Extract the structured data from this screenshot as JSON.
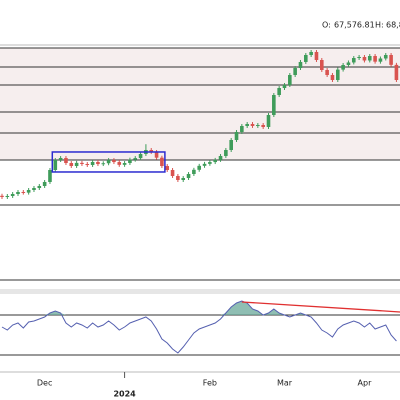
{
  "header": {
    "open_label": "O:",
    "open": "67,576.81",
    "high_label": "H:",
    "high": "68,8"
  },
  "chart_data": {
    "type": "candlestick",
    "categories": [
      null,
      null,
      null,
      null,
      null,
      null,
      null,
      null,
      "Dec",
      null,
      null,
      null,
      null,
      null,
      null,
      null,
      null,
      null,
      null,
      null,
      null,
      null,
      null,
      "2024",
      null,
      null,
      null,
      null,
      null,
      null,
      null,
      null,
      null,
      null,
      null,
      null,
      null,
      null,
      null,
      "Feb",
      null,
      null,
      null,
      null,
      null,
      null,
      null,
      null,
      null,
      null,
      null,
      null,
      null,
      "Mar",
      null,
      null,
      null,
      null,
      null,
      null,
      null,
      null,
      null,
      null,
      null,
      null,
      null,
      null,
      "Apr",
      null,
      null,
      null,
      null,
      null,
      null
    ],
    "open": [
      36800,
      36500,
      36750,
      37250,
      37760,
      37600,
      38260,
      38760,
      39270,
      40280,
      43300,
      45820,
      46320,
      45060,
      44310,
      45100,
      44810,
      44560,
      45320,
      44800,
      45000,
      45800,
      45300,
      44600,
      45060,
      45900,
      46300,
      47330,
      48340,
      47840,
      46400,
      44300,
      43300,
      41790,
      40780,
      41280,
      42290,
      43350,
      44350,
      44850,
      45300,
      45850,
      46830,
      48340,
      50860,
      52880,
      54390,
      54890,
      54400,
      54640,
      54140,
      57160,
      62200,
      63960,
      64720,
      67240,
      69000,
      70520,
      72280,
      73040,
      71020,
      68500,
      67240,
      65980,
      68600,
      69760,
      70400,
      71520,
      71780,
      70900,
      72030,
      70600,
      71400,
      72280,
      69800
    ],
    "high": [
      37300,
      37250,
      37750,
      38260,
      38260,
      38760,
      39260,
      39770,
      40780,
      43800,
      46320,
      46820,
      46820,
      45560,
      45600,
      45600,
      45310,
      45820,
      45820,
      45500,
      46300,
      46300,
      45800,
      45560,
      46400,
      46800,
      47830,
      49800,
      48840,
      48340,
      46900,
      44800,
      43800,
      42290,
      41780,
      42790,
      43850,
      44850,
      45350,
      45800,
      46350,
      47330,
      48840,
      51360,
      53380,
      54890,
      55390,
      55390,
      55140,
      55140,
      57660,
      62700,
      64460,
      65220,
      67740,
      69500,
      71020,
      72780,
      73540,
      73540,
      71520,
      69000,
      67740,
      69100,
      70260,
      70900,
      72020,
      72280,
      72280,
      72530,
      72530,
      71900,
      72780,
      72780,
      70300
    ],
    "low": [
      36000,
      36000,
      36250,
      36750,
      37100,
      37100,
      37760,
      38260,
      38770,
      39780,
      42800,
      45320,
      44560,
      43810,
      43810,
      44310,
      44060,
      44060,
      44300,
      44300,
      44500,
      44800,
      44100,
      44100,
      44560,
      45400,
      45800,
      46830,
      47340,
      45900,
      43800,
      42800,
      41290,
      40280,
      40280,
      40780,
      41790,
      42850,
      43850,
      44350,
      44800,
      45350,
      46330,
      47840,
      50360,
      52380,
      53890,
      53900,
      53900,
      53640,
      53640,
      56660,
      61700,
      63460,
      64220,
      66740,
      68500,
      70020,
      71780,
      70520,
      68000,
      66740,
      65480,
      65480,
      68100,
      69260,
      69900,
      71020,
      70400,
      70400,
      70100,
      70100,
      70900,
      69300,
      65480
    ],
    "close": [
      36500,
      36750,
      37250,
      37760,
      37600,
      38260,
      38760,
      39270,
      40280,
      43300,
      45820,
      46320,
      45060,
      44310,
      45100,
      44810,
      44560,
      45320,
      44800,
      45000,
      45800,
      45300,
      44600,
      45060,
      45900,
      46300,
      47330,
      48340,
      47840,
      46400,
      44300,
      43300,
      41790,
      40780,
      41280,
      42290,
      43350,
      44350,
      44850,
      45300,
      45850,
      46830,
      48340,
      50860,
      52880,
      54390,
      54890,
      54400,
      54640,
      54140,
      57160,
      62200,
      63960,
      64720,
      67240,
      69000,
      70520,
      72280,
      73040,
      71020,
      68500,
      67240,
      65980,
      68600,
      69760,
      70400,
      71520,
      71780,
      70900,
      72030,
      70600,
      71400,
      72280,
      69800,
      65980
    ],
    "up_color": "#3f9c5a",
    "down_color": "#d9534f",
    "ylim": [
      13060,
      74800
    ],
    "levels": [
      74040,
      69260,
      64720,
      57920,
      52620,
      45820,
      34480,
      15580
    ],
    "box": {
      "ylim": [
        42800,
        47840
      ],
      "color": "#2b2bd0"
    },
    "rsi": {
      "values": [
        58,
        55,
        60,
        62,
        57,
        63,
        64,
        66,
        68,
        72,
        74,
        72,
        62,
        58,
        62,
        60,
        57,
        62,
        58,
        60,
        64,
        60,
        55,
        58,
        62,
        64,
        66,
        68,
        64,
        56,
        46,
        42,
        36,
        32,
        38,
        45,
        52,
        56,
        58,
        60,
        62,
        66,
        72,
        78,
        82,
        84,
        82,
        76,
        74,
        70,
        72,
        76,
        72,
        70,
        68,
        70,
        72,
        70,
        68,
        62,
        55,
        52,
        48,
        56,
        60,
        62,
        64,
        62,
        58,
        62,
        56,
        58,
        60,
        50,
        44
      ],
      "ylim": [
        15,
        90
      ],
      "levels": [
        70,
        30
      ],
      "trendline": [
        83,
        73
      ],
      "color": "#5560b0",
      "trend_color": "#e03030",
      "fill_color": "#6aa89a"
    }
  }
}
